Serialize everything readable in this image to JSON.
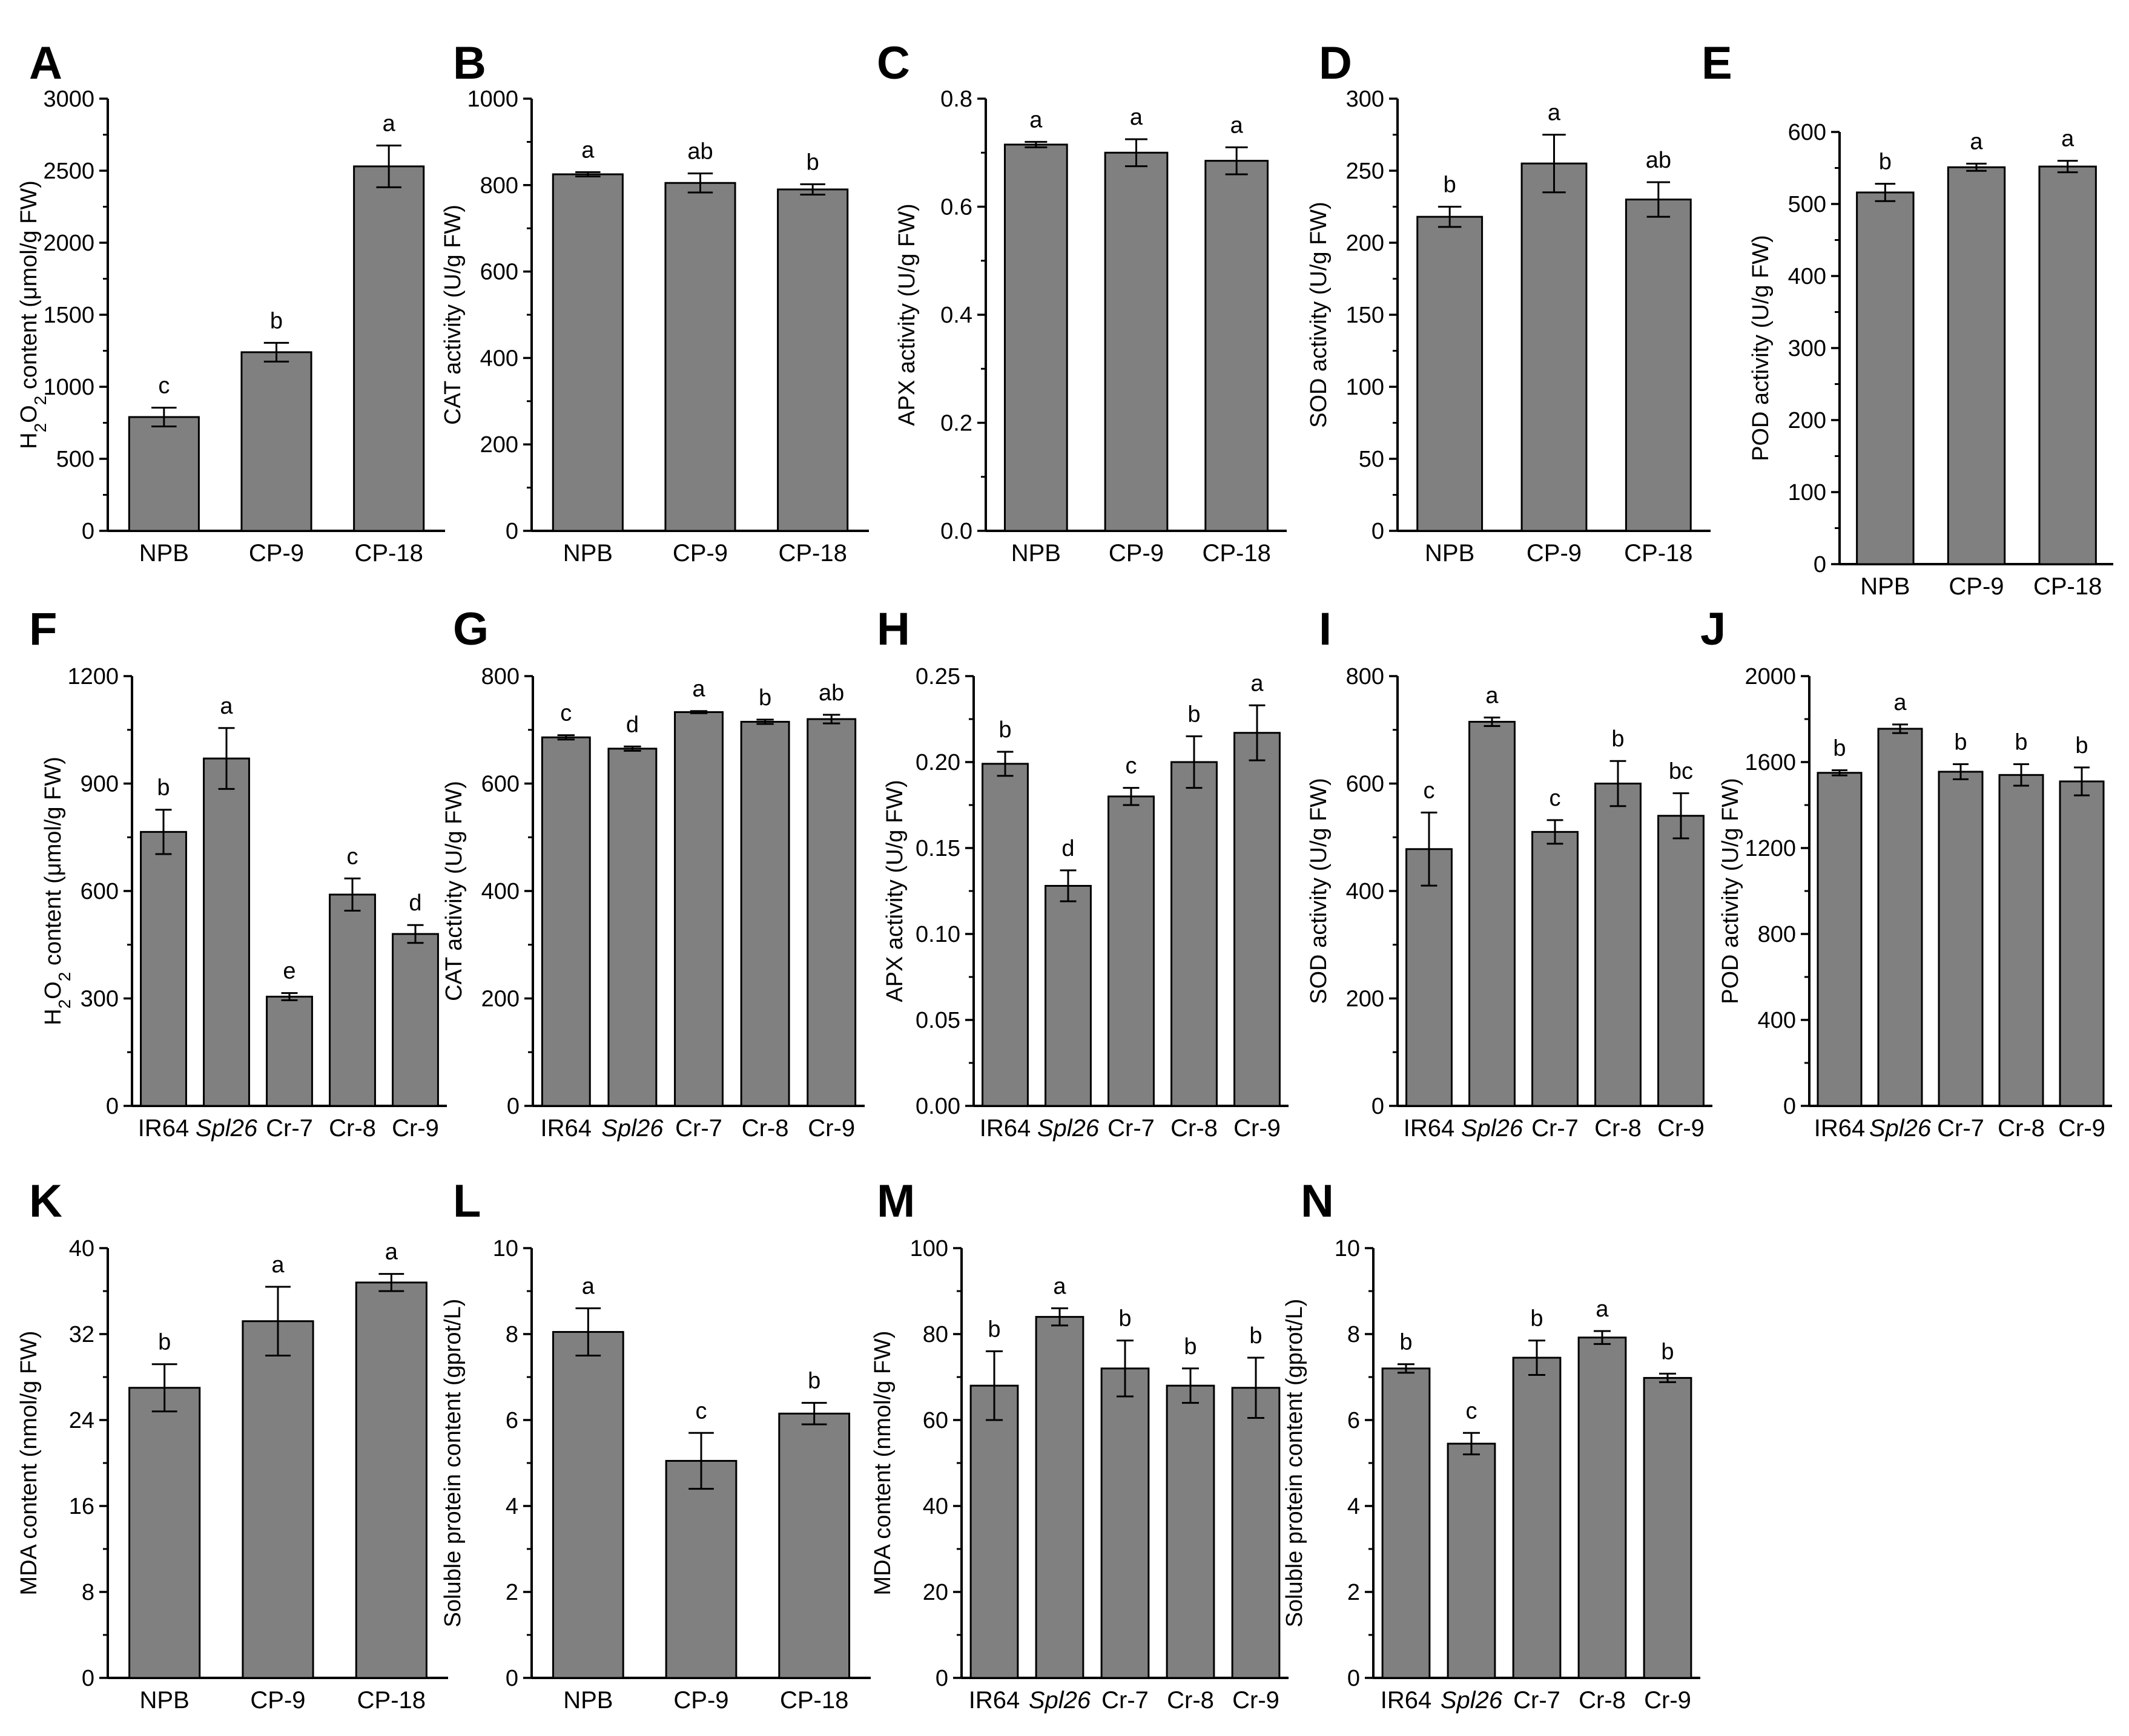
{
  "figure": {
    "bar_color": "#808080",
    "axis_color": "#000000"
  },
  "chart_data": [
    {
      "panel": "A",
      "type": "bar",
      "ylabel": "H2O2 content (μmol/g FW)",
      "ylabel_parts": [
        {
          "t": "H"
        },
        {
          "t": "2",
          "sub": true
        },
        {
          "t": "O"
        },
        {
          "t": "2",
          "sub": true
        },
        {
          "t": " content (μmol/g FW)"
        }
      ],
      "ylim": [
        0,
        3000
      ],
      "yticks": [
        0,
        500,
        1000,
        1500,
        2000,
        2500,
        3000
      ],
      "categories": [
        {
          "t": "NPB"
        },
        {
          "t": "CP-9"
        },
        {
          "t": "CP-18"
        }
      ],
      "values": [
        790,
        1240,
        2530
      ],
      "errors": [
        65,
        65,
        145
      ],
      "letters": [
        "c",
        "b",
        "a"
      ]
    },
    {
      "panel": "B",
      "type": "bar",
      "ylabel": "CAT activity (U/g FW)",
      "ylim": [
        0,
        1000
      ],
      "yticks": [
        0,
        200,
        400,
        600,
        800,
        1000
      ],
      "categories": [
        {
          "t": "NPB"
        },
        {
          "t": "CP-9"
        },
        {
          "t": "CP-18"
        }
      ],
      "values": [
        825,
        805,
        790
      ],
      "errors": [
        5,
        22,
        12
      ],
      "letters": [
        "a",
        "ab",
        "b"
      ]
    },
    {
      "panel": "C",
      "type": "bar",
      "ylabel": "APX activity (U/g FW)",
      "ylim": [
        0,
        0.8
      ],
      "yticks": [
        "0.0",
        "0.2",
        "0.4",
        "0.6",
        "0.8"
      ],
      "categories": [
        {
          "t": "NPB"
        },
        {
          "t": "CP-9"
        },
        {
          "t": "CP-18"
        }
      ],
      "values": [
        0.715,
        0.7,
        0.685
      ],
      "errors": [
        0.005,
        0.025,
        0.025
      ],
      "letters": [
        "a",
        "a",
        "a"
      ]
    },
    {
      "panel": "D",
      "type": "bar",
      "ylabel": "SOD activity (U/g FW)",
      "ylim": [
        0,
        300
      ],
      "yticks": [
        0,
        50,
        100,
        150,
        200,
        250,
        300
      ],
      "categories": [
        {
          "t": "NPB"
        },
        {
          "t": "CP-9"
        },
        {
          "t": "CP-18"
        }
      ],
      "values": [
        218,
        255,
        230
      ],
      "errors": [
        7,
        20,
        12
      ],
      "letters": [
        "b",
        "a",
        "ab"
      ]
    },
    {
      "panel": "E",
      "type": "bar",
      "ylabel": "POD activity (U/g FW)",
      "ylim": [
        0,
        600
      ],
      "yticks": [
        0,
        100,
        200,
        300,
        400,
        500,
        600
      ],
      "categories": [
        {
          "t": "NPB"
        },
        {
          "t": "CP-9"
        },
        {
          "t": "CP-18"
        }
      ],
      "values": [
        516,
        551,
        552
      ],
      "errors": [
        12,
        5,
        8
      ],
      "letters": [
        "b",
        "a",
        "a"
      ]
    },
    {
      "panel": "F",
      "type": "bar",
      "ylabel": "H2O2 content (μmol/g FW)",
      "ylabel_parts": [
        {
          "t": "H"
        },
        {
          "t": "2",
          "sub": true
        },
        {
          "t": "O"
        },
        {
          "t": "2",
          "sub": true
        },
        {
          "t": " content (μmol/g FW)"
        }
      ],
      "ylim": [
        0,
        1200
      ],
      "yticks": [
        0,
        300,
        600,
        900,
        1200
      ],
      "categories": [
        {
          "t": "IR64"
        },
        {
          "t": "Spl26",
          "italic": true
        },
        {
          "t": "Cr-7"
        },
        {
          "t": "Cr-8"
        },
        {
          "t": "Cr-9"
        }
      ],
      "values": [
        765,
        970,
        305,
        590,
        480
      ],
      "errors": [
        62,
        85,
        10,
        45,
        25
      ],
      "letters": [
        "b",
        "a",
        "e",
        "c",
        "d"
      ]
    },
    {
      "panel": "G",
      "type": "bar",
      "ylabel": "CAT activity (U/g FW)",
      "ylim": [
        0,
        800
      ],
      "yticks": [
        0,
        200,
        400,
        600,
        800
      ],
      "categories": [
        {
          "t": "IR64"
        },
        {
          "t": "Spl26",
          "italic": true
        },
        {
          "t": "Cr-7"
        },
        {
          "t": "Cr-8"
        },
        {
          "t": "Cr-9"
        }
      ],
      "values": [
        686,
        665,
        733,
        715,
        720
      ],
      "errors": [
        4,
        4,
        2,
        4,
        8
      ],
      "letters": [
        "c",
        "d",
        "a",
        "b",
        "ab"
      ]
    },
    {
      "panel": "H",
      "type": "bar",
      "ylabel": "APX activity (U/g FW)",
      "ylim": [
        0,
        0.25
      ],
      "yticks": [
        "0.00",
        "0.05",
        "0.10",
        "0.15",
        "0.20",
        "0.25"
      ],
      "categories": [
        {
          "t": "IR64"
        },
        {
          "t": "Spl26",
          "italic": true
        },
        {
          "t": "Cr-7"
        },
        {
          "t": "Cr-8"
        },
        {
          "t": "Cr-9"
        }
      ],
      "values": [
        0.199,
        0.128,
        0.18,
        0.2,
        0.217
      ],
      "errors": [
        0.007,
        0.009,
        0.005,
        0.015,
        0.016
      ],
      "letters": [
        "b",
        "d",
        "c",
        "b",
        "a"
      ]
    },
    {
      "panel": "I",
      "type": "bar",
      "ylabel": "SOD activity (U/g FW)",
      "ylim": [
        0,
        800
      ],
      "yticks": [
        0,
        200,
        400,
        600,
        800
      ],
      "categories": [
        {
          "t": "IR64"
        },
        {
          "t": "Spl26",
          "italic": true
        },
        {
          "t": "Cr-7"
        },
        {
          "t": "Cr-8"
        },
        {
          "t": "Cr-9"
        }
      ],
      "values": [
        478,
        715,
        510,
        600,
        540
      ],
      "errors": [
        68,
        8,
        22,
        42,
        42
      ],
      "letters": [
        "c",
        "a",
        "c",
        "b",
        "bc"
      ]
    },
    {
      "panel": "J",
      "type": "bar",
      "ylabel": "POD activity (U/g FW)",
      "ylim": [
        0,
        2000
      ],
      "yticks": [
        0,
        400,
        800,
        1200,
        1600,
        2000
      ],
      "categories": [
        {
          "t": "IR64"
        },
        {
          "t": "Spl26",
          "italic": true
        },
        {
          "t": "Cr-7"
        },
        {
          "t": "Cr-8"
        },
        {
          "t": "Cr-9"
        }
      ],
      "values": [
        1550,
        1755,
        1555,
        1540,
        1510
      ],
      "errors": [
        12,
        20,
        35,
        50,
        65
      ],
      "letters": [
        "b",
        "a",
        "b",
        "b",
        "b"
      ]
    },
    {
      "panel": "K",
      "type": "bar",
      "ylabel": "MDA content (nmol/g FW)",
      "ylim": [
        0,
        40
      ],
      "yticks": [
        0,
        8,
        16,
        24,
        32,
        40
      ],
      "categories": [
        {
          "t": "NPB"
        },
        {
          "t": "CP-9"
        },
        {
          "t": "CP-18"
        }
      ],
      "values": [
        27.0,
        33.2,
        36.8
      ],
      "errors": [
        2.2,
        3.2,
        0.8
      ],
      "letters": [
        "b",
        "a",
        "a"
      ]
    },
    {
      "panel": "L",
      "type": "bar",
      "ylabel": "Soluble protein content (gprot/L)",
      "ylim": [
        0,
        10
      ],
      "yticks": [
        0,
        2,
        4,
        6,
        8,
        10
      ],
      "categories": [
        {
          "t": "NPB"
        },
        {
          "t": "CP-9"
        },
        {
          "t": "CP-18"
        }
      ],
      "values": [
        8.05,
        5.05,
        6.15
      ],
      "errors": [
        0.55,
        0.65,
        0.25
      ],
      "letters": [
        "a",
        "c",
        "b"
      ]
    },
    {
      "panel": "M",
      "type": "bar",
      "ylabel": "MDA content (nmol/g FW)",
      "ylim": [
        0,
        100
      ],
      "yticks": [
        0,
        20,
        40,
        60,
        80,
        100
      ],
      "categories": [
        {
          "t": "IR64"
        },
        {
          "t": "Spl26",
          "italic": true
        },
        {
          "t": "Cr-7"
        },
        {
          "t": "Cr-8"
        },
        {
          "t": "Cr-9"
        }
      ],
      "values": [
        68,
        84,
        72,
        68,
        67.5
      ],
      "errors": [
        8,
        2,
        6.5,
        4,
        7
      ],
      "letters": [
        "b",
        "a",
        "b",
        "b",
        "b"
      ]
    },
    {
      "panel": "N",
      "type": "bar",
      "ylabel": "Soluble protein content (gprot/L)",
      "ylim": [
        0,
        10
      ],
      "yticks": [
        0,
        2,
        4,
        6,
        8,
        10
      ],
      "categories": [
        {
          "t": "IR64"
        },
        {
          "t": "Spl26",
          "italic": true
        },
        {
          "t": "Cr-7"
        },
        {
          "t": "Cr-8"
        },
        {
          "t": "Cr-9"
        }
      ],
      "values": [
        7.2,
        5.45,
        7.45,
        7.92,
        6.98
      ],
      "errors": [
        0.1,
        0.25,
        0.4,
        0.15,
        0.1
      ],
      "letters": [
        "b",
        "c",
        "b",
        "a",
        "b"
      ]
    }
  ]
}
